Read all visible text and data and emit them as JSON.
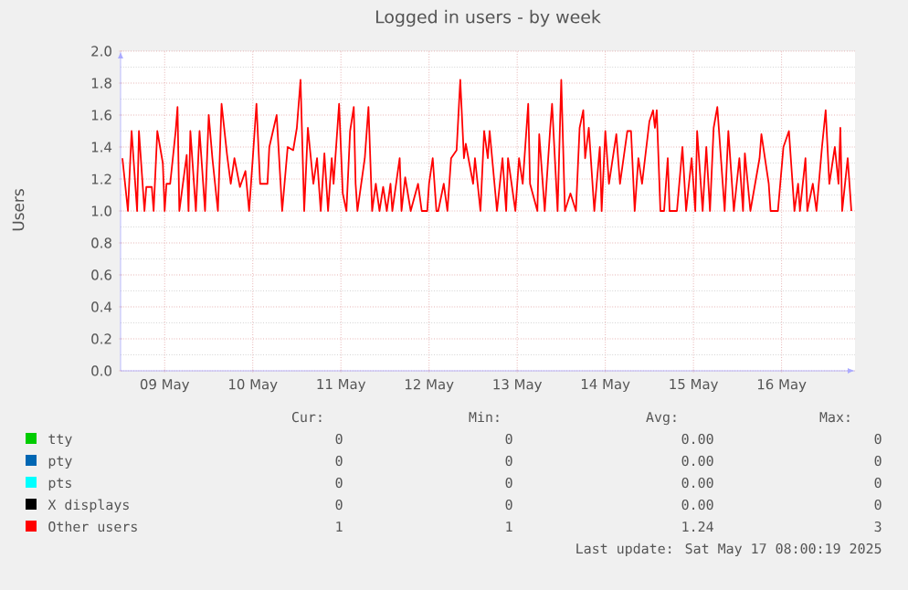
{
  "chart_data": {
    "type": "line",
    "title": "Logged in users - by week",
    "ylabel": "Users",
    "xlim": [
      "2025-05-09T00:00",
      "2025-05-17T08:00"
    ],
    "xticks": [
      {
        "value": "2025-05-09T12:00",
        "label": "09 May"
      },
      {
        "value": "2025-05-10T12:00",
        "label": "10 May"
      },
      {
        "value": "2025-05-11T12:00",
        "label": "11 May"
      },
      {
        "value": "2025-05-12T12:00",
        "label": "12 May"
      },
      {
        "value": "2025-05-13T12:00",
        "label": "13 May"
      },
      {
        "value": "2025-05-14T12:00",
        "label": "14 May"
      },
      {
        "value": "2025-05-15T12:00",
        "label": "15 May"
      },
      {
        "value": "2025-05-16T12:00",
        "label": "16 May"
      }
    ],
    "ylim": [
      0,
      2
    ],
    "yticks": [
      {
        "value": 0,
        "label": "0.0"
      },
      {
        "value": 0.2,
        "label": "0.2"
      },
      {
        "value": 0.4,
        "label": "0.4"
      },
      {
        "value": 0.6,
        "label": "0.6"
      },
      {
        "value": 0.8,
        "label": "0.8"
      },
      {
        "value": 1,
        "label": "1.0"
      },
      {
        "value": 1.2,
        "label": "1.2"
      },
      {
        "value": 1.4,
        "label": "1.4"
      },
      {
        "value": 1.6,
        "label": "1.6"
      },
      {
        "value": 1.8,
        "label": "1.8"
      },
      {
        "value": 2,
        "label": "2.0"
      }
    ],
    "grid": true,
    "legend": "bottom",
    "series": [
      {
        "name": "tty",
        "color": "#00cc00"
      },
      {
        "name": "pty",
        "color": "#0066b3"
      },
      {
        "name": "pts",
        "color": "#00ffff"
      },
      {
        "name": "X displays",
        "color": "#000000"
      },
      {
        "name": "Other users",
        "color": "#ff0000",
        "x": [
          "2025-05-09T00:30",
          "2025-05-09T02:00",
          "2025-05-09T03:00",
          "2025-05-09T04:30",
          "2025-05-09T05:00",
          "2025-05-09T06:30",
          "2025-05-09T07:00",
          "2025-05-09T08:30",
          "2025-05-09T09:00",
          "2025-05-09T10:00",
          "2025-05-09T11:30",
          "2025-05-09T12:00",
          "2025-05-09T12:30",
          "2025-05-09T13:30",
          "2025-05-09T15:00",
          "2025-05-09T15:30",
          "2025-05-09T16:00",
          "2025-05-09T18:00",
          "2025-05-09T18:30",
          "2025-05-09T19:00",
          "2025-05-09T20:30",
          "2025-05-09T21:30",
          "2025-05-09T23:00",
          "2025-05-10T00:00",
          "2025-05-10T01:00",
          "2025-05-10T02:30",
          "2025-05-10T03:30",
          "2025-05-10T05:00",
          "2025-05-10T06:00",
          "2025-05-10T07:00",
          "2025-05-10T08:30",
          "2025-05-10T10:00",
          "2025-05-10T11:00",
          "2025-05-10T12:00",
          "2025-05-10T13:00",
          "2025-05-10T14:00",
          "2025-05-10T16:00",
          "2025-05-10T16:30",
          "2025-05-10T18:30",
          "2025-05-10T20:00",
          "2025-05-10T21:30",
          "2025-05-10T23:00",
          "2025-05-11T00:00",
          "2025-05-11T01:00",
          "2025-05-11T02:00",
          "2025-05-11T03:00",
          "2025-05-11T04:30",
          "2025-05-11T05:30",
          "2025-05-11T06:30",
          "2025-05-11T07:30",
          "2025-05-11T08:30",
          "2025-05-11T09:30",
          "2025-05-11T10:00",
          "2025-05-11T11:30",
          "2025-05-11T12:30",
          "2025-05-11T13:30",
          "2025-05-11T14:30",
          "2025-05-11T15:30",
          "2025-05-11T16:00",
          "2025-05-11T16:30",
          "2025-05-11T18:30",
          "2025-05-11T19:30",
          "2025-05-11T20:30",
          "2025-05-11T21:30",
          "2025-05-11T22:30",
          "2025-05-11T23:30",
          "2025-05-12T00:30",
          "2025-05-12T01:30",
          "2025-05-12T02:00",
          "2025-05-12T04:00",
          "2025-05-12T04:30",
          "2025-05-12T05:30",
          "2025-05-12T07:00",
          "2025-05-12T09:00",
          "2025-05-12T10:00",
          "2025-05-12T11:30",
          "2025-05-12T12:00",
          "2025-05-12T13:00",
          "2025-05-12T14:00",
          "2025-05-12T14:30",
          "2025-05-12T16:00",
          "2025-05-12T17:00",
          "2025-05-12T18:00",
          "2025-05-12T19:30",
          "2025-05-12T20:30",
          "2025-05-12T21:30",
          "2025-05-12T22:00",
          "2025-05-13T00:00",
          "2025-05-13T00:30",
          "2025-05-13T02:00",
          "2025-05-13T03:00",
          "2025-05-13T04:00",
          "2025-05-13T04:30",
          "2025-05-13T06:30",
          "2025-05-13T08:00",
          "2025-05-13T09:00",
          "2025-05-13T09:30",
          "2025-05-13T11:30",
          "2025-05-13T12:30",
          "2025-05-13T13:30",
          "2025-05-13T15:00",
          "2025-05-13T15:30",
          "2025-05-13T17:30",
          "2025-05-13T18:00",
          "2025-05-13T19:30",
          "2025-05-13T21:00",
          "2025-05-13T21:30",
          "2025-05-13T23:00",
          "2025-05-14T00:00",
          "2025-05-14T01:00",
          "2025-05-14T02:30",
          "2025-05-14T04:00",
          "2025-05-14T05:00",
          "2025-05-14T06:00",
          "2025-05-14T06:30",
          "2025-05-14T07:30",
          "2025-05-14T09:00",
          "2025-05-14T10:30",
          "2025-05-14T11:00",
          "2025-05-14T12:00",
          "2025-05-14T13:00",
          "2025-05-14T15:00",
          "2025-05-14T16:00",
          "2025-05-14T18:00",
          "2025-05-14T19:00",
          "2025-05-14T20:00",
          "2025-05-14T21:00",
          "2025-05-14T22:00",
          "2025-05-15T00:00",
          "2025-05-15T01:00",
          "2025-05-15T01:30",
          "2025-05-15T02:00",
          "2025-05-15T03:00",
          "2025-05-15T04:00",
          "2025-05-15T05:00",
          "2025-05-15T05:30",
          "2025-05-15T07:30",
          "2025-05-15T09:00",
          "2025-05-15T10:00",
          "2025-05-15T11:30",
          "2025-05-15T12:30",
          "2025-05-15T13:00",
          "2025-05-15T14:30",
          "2025-05-15T15:30",
          "2025-05-15T16:30",
          "2025-05-15T17:30",
          "2025-05-15T18:30",
          "2025-05-15T20:30",
          "2025-05-15T21:30",
          "2025-05-15T23:00",
          "2025-05-16T00:30",
          "2025-05-16T01:30",
          "2025-05-16T02:00",
          "2025-05-16T03:30",
          "2025-05-16T06:00",
          "2025-05-16T06:30",
          "2025-05-16T08:30",
          "2025-05-16T09:00",
          "2025-05-16T11:00",
          "2025-05-16T12:30",
          "2025-05-16T14:00",
          "2025-05-16T15:30",
          "2025-05-16T16:30",
          "2025-05-16T17:00",
          "2025-05-16T18:30",
          "2025-05-16T19:00",
          "2025-05-16T20:30",
          "2025-05-16T21:30",
          "2025-05-16T23:00",
          "2025-05-17T00:00",
          "2025-05-17T01:00",
          "2025-05-17T02:30",
          "2025-05-17T03:30",
          "2025-05-17T04:00",
          "2025-05-17T04:30",
          "2025-05-17T06:00",
          "2025-05-17T07:00"
        ],
        "values": [
          1.33,
          1.0,
          1.5,
          1.0,
          1.5,
          1.0,
          1.15,
          1.15,
          1.0,
          1.5,
          1.3,
          1.0,
          1.17,
          1.17,
          1.5,
          1.65,
          1.0,
          1.35,
          1.0,
          1.5,
          1.0,
          1.5,
          1.0,
          1.6,
          1.33,
          1.0,
          1.67,
          1.35,
          1.17,
          1.33,
          1.15,
          1.25,
          1.0,
          1.33,
          1.67,
          1.17,
          1.17,
          1.4,
          1.6,
          1.0,
          1.4,
          1.38,
          1.52,
          1.82,
          1.0,
          1.52,
          1.17,
          1.33,
          1.0,
          1.36,
          1.0,
          1.33,
          1.17,
          1.67,
          1.11,
          1.0,
          1.5,
          1.65,
          1.17,
          1.0,
          1.33,
          1.65,
          1.0,
          1.17,
          1.0,
          1.15,
          1.0,
          1.17,
          1.0,
          1.33,
          1.0,
          1.21,
          1.0,
          1.17,
          1.0,
          1.0,
          1.17,
          1.33,
          1.0,
          1.0,
          1.17,
          1.0,
          1.33,
          1.38,
          1.82,
          1.33,
          1.42,
          1.17,
          1.33,
          1.0,
          1.5,
          1.33,
          1.5,
          1.0,
          1.33,
          1.0,
          1.33,
          1.0,
          1.33,
          1.17,
          1.67,
          1.17,
          1.0,
          1.48,
          1.0,
          1.52,
          1.67,
          1.0,
          1.82,
          1.0,
          1.11,
          1.0,
          1.52,
          1.63,
          1.33,
          1.52,
          1.0,
          1.4,
          1.0,
          1.5,
          1.17,
          1.48,
          1.17,
          1.5,
          1.5,
          1.0,
          1.33,
          1.17,
          1.56,
          1.63,
          1.52,
          1.63,
          1.0,
          1.0,
          1.33,
          1.0,
          1.0,
          1.4,
          1.0,
          1.33,
          1.0,
          1.5,
          1.0,
          1.4,
          1.0,
          1.52,
          1.65,
          1.0,
          1.5,
          1.0,
          1.33,
          1.0,
          1.36,
          1.0,
          1.33,
          1.48,
          1.17,
          1.0,
          1.0,
          1.4,
          1.5,
          1.0,
          1.17,
          1.0,
          1.33,
          1.0,
          1.17,
          1.0,
          1.4,
          1.63,
          1.17,
          1.4,
          1.17,
          1.52,
          1.0,
          1.33,
          1.0
        ]
      }
    ],
    "annotations": [
      "Cur:",
      "Min:",
      "Avg:",
      "Max:",
      "0",
      "0",
      "0.00",
      "0",
      "0",
      "0",
      "0.00",
      "0",
      "0",
      "0",
      "0.00",
      "0",
      "0",
      "0",
      "0.00",
      "0",
      "1",
      "1",
      "1.24",
      "3",
      "Last update: Sat May 17 08:00:19 2025"
    ]
  }
}
